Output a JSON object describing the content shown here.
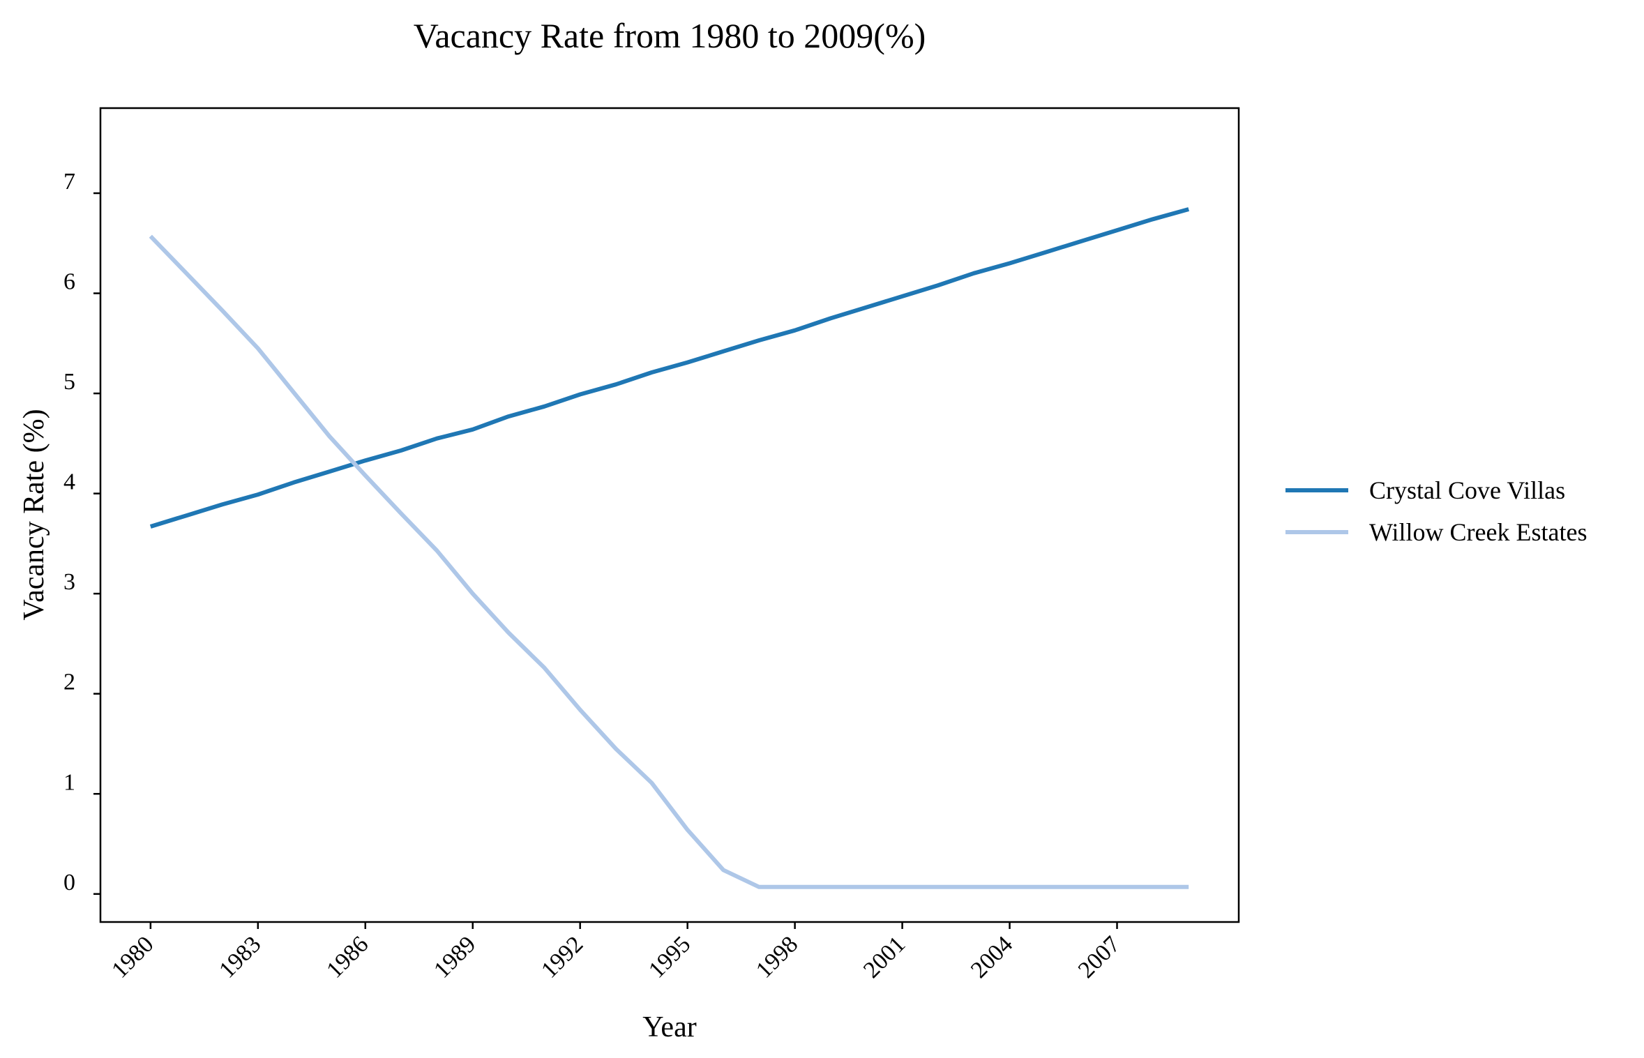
{
  "chart_data": {
    "type": "line",
    "title": "Vacancy Rate from 1980 to 2009(%)",
    "xlabel": "Year",
    "ylabel": "Vacancy Rate (%)",
    "x": [
      1980,
      1981,
      1982,
      1983,
      1984,
      1985,
      1986,
      1987,
      1988,
      1989,
      1990,
      1991,
      1992,
      1993,
      1994,
      1995,
      1996,
      1997,
      1998,
      1999,
      2000,
      2001,
      2002,
      2003,
      2004,
      2005,
      2006,
      2007,
      2008,
      2009
    ],
    "x_ticks": [
      "1980",
      "1983",
      "1986",
      "1989",
      "1992",
      "1995",
      "1998",
      "2001",
      "2004",
      "2007"
    ],
    "y_ticks": [
      "0",
      "1",
      "2",
      "3",
      "4",
      "5",
      "6",
      "7"
    ],
    "xlim": [
      1978.6,
      2010.4
    ],
    "ylim": [
      -0.28,
      7.85
    ],
    "grid": false,
    "legend_position": "right",
    "series": [
      {
        "name": "Crystal Cove Villas",
        "color": "#1f77b4",
        "values": [
          3.67,
          3.78,
          3.89,
          3.99,
          4.11,
          4.22,
          4.33,
          4.43,
          4.55,
          4.64,
          4.77,
          4.87,
          4.99,
          5.09,
          5.21,
          5.31,
          5.42,
          5.53,
          5.63,
          5.75,
          5.86,
          5.97,
          6.08,
          6.2,
          6.3,
          6.41,
          6.52,
          6.63,
          6.74,
          6.84
        ]
      },
      {
        "name": "Willow Creek Estates",
        "color": "#aec7e8",
        "values": [
          6.57,
          6.2,
          5.83,
          5.45,
          5.01,
          4.57,
          4.18,
          3.8,
          3.43,
          3.0,
          2.61,
          2.26,
          1.84,
          1.45,
          1.11,
          0.64,
          0.24,
          0.07,
          0.07,
          0.07,
          0.07,
          0.07,
          0.07,
          0.07,
          0.07,
          0.07,
          0.07,
          0.07,
          0.07,
          0.07
        ]
      }
    ]
  }
}
